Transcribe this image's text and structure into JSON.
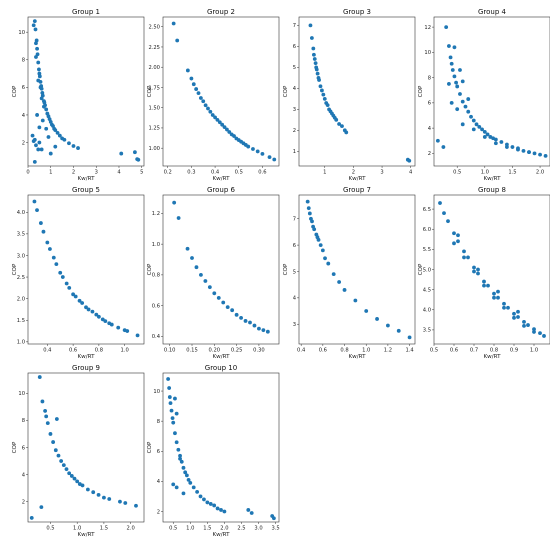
{
  "figure": {
    "xlabel": "Kw/RT",
    "ylabel": "COP",
    "marker_color": "#1f77b4"
  },
  "chart_data": [
    {
      "type": "scatter",
      "title": "Group 1",
      "xlabel": "Kw/RT",
      "ylabel": "COP",
      "xlim": [
        0,
        5.1
      ],
      "ylim": [
        0.3,
        11.1
      ],
      "xticks": [
        0,
        1,
        2,
        3,
        4,
        5
      ],
      "yticks": [
        2,
        4,
        6,
        8,
        10
      ],
      "x": [
        0.25,
        0.3,
        0.33,
        0.35,
        0.38,
        0.4,
        0.42,
        0.45,
        0.48,
        0.5,
        0.52,
        0.55,
        0.58,
        0.6,
        0.63,
        0.65,
        0.7,
        0.72,
        0.75,
        0.8,
        0.85,
        0.9,
        0.95,
        1.0,
        1.05,
        1.1,
        1.15,
        1.2,
        1.3,
        1.4,
        1.5,
        1.6,
        1.8,
        2.0,
        2.2,
        0.35,
        0.45,
        0.55,
        0.6,
        0.4,
        0.5,
        0.65,
        0.7,
        0.8,
        0.3,
        0.35,
        0.45,
        0.2,
        0.25,
        0.5,
        0.6,
        0.3,
        0.9,
        1.0,
        1.2,
        4.1,
        4.8,
        4.85,
        4.7
      ],
      "y": [
        10.5,
        10.8,
        10.2,
        9.2,
        9.4,
        8.8,
        8.4,
        7.8,
        7.3,
        7.0,
        6.8,
        6.4,
        6.1,
        5.9,
        5.6,
        5.4,
        5.0,
        4.9,
        4.7,
        4.4,
        4.1,
        3.9,
        3.7,
        3.5,
        3.3,
        3.2,
        3.0,
        2.9,
        2.7,
        2.5,
        2.3,
        2.2,
        1.95,
        1.75,
        1.6,
        8.2,
        6.5,
        6.0,
        5.2,
        4.0,
        3.1,
        3.6,
        4.6,
        3.0,
        2.2,
        1.8,
        1.5,
        2.5,
        2.1,
        2.0,
        1.5,
        0.6,
        2.4,
        1.2,
        1.7,
        1.2,
        0.8,
        0.75,
        1.3
      ]
    },
    {
      "type": "scatter",
      "title": "Group 2",
      "xlabel": "Kw/RT",
      "ylabel": "COP",
      "xlim": [
        0.18,
        0.67
      ],
      "ylim": [
        0.78,
        2.62
      ],
      "xticks": [
        0.2,
        0.3,
        0.4,
        0.5,
        0.6
      ],
      "yticks": [
        1.0,
        1.25,
        1.5,
        1.75,
        2.0,
        2.25,
        2.5
      ],
      "x": [
        0.225,
        0.24,
        0.285,
        0.3,
        0.31,
        0.32,
        0.33,
        0.34,
        0.35,
        0.36,
        0.37,
        0.38,
        0.39,
        0.4,
        0.41,
        0.42,
        0.43,
        0.44,
        0.45,
        0.46,
        0.47,
        0.48,
        0.49,
        0.5,
        0.51,
        0.52,
        0.53,
        0.54,
        0.56,
        0.58,
        0.6,
        0.63,
        0.65
      ],
      "y": [
        2.54,
        2.33,
        1.96,
        1.86,
        1.79,
        1.73,
        1.68,
        1.62,
        1.58,
        1.53,
        1.49,
        1.45,
        1.41,
        1.38,
        1.35,
        1.32,
        1.29,
        1.26,
        1.23,
        1.2,
        1.17,
        1.15,
        1.12,
        1.1,
        1.08,
        1.06,
        1.04,
        1.02,
        0.99,
        0.96,
        0.93,
        0.89,
        0.86
      ]
    },
    {
      "type": "scatter",
      "title": "Group 3",
      "xlabel": "Kw/RT",
      "ylabel": "COP",
      "xlim": [
        0.1,
        4.15
      ],
      "ylim": [
        0.3,
        7.4
      ],
      "xticks": [
        1,
        2,
        3,
        4
      ],
      "yticks": [
        1,
        2,
        3,
        4,
        5,
        6,
        7
      ],
      "x": [
        0.5,
        0.55,
        0.6,
        0.62,
        0.65,
        0.68,
        0.7,
        0.72,
        0.75,
        0.78,
        0.8,
        0.85,
        0.9,
        0.95,
        1.0,
        1.05,
        1.1,
        1.15,
        1.2,
        1.25,
        1.3,
        1.35,
        1.4,
        1.5,
        1.6,
        1.7,
        1.75,
        3.9,
        3.95
      ],
      "y": [
        7.0,
        6.4,
        5.9,
        5.6,
        5.4,
        5.2,
        5.0,
        4.9,
        4.7,
        4.5,
        4.4,
        4.1,
        3.9,
        3.7,
        3.5,
        3.3,
        3.2,
        3.0,
        2.9,
        2.8,
        2.7,
        2.6,
        2.5,
        2.3,
        2.2,
        2.0,
        1.9,
        0.6,
        0.55
      ]
    },
    {
      "type": "scatter",
      "title": "Group 4",
      "xlabel": "Kw/RT",
      "ylabel": "COP",
      "xlim": [
        0.08,
        2.18
      ],
      "ylim": [
        1.0,
        12.8
      ],
      "xticks": [
        0.5,
        1.0,
        1.5,
        2.0
      ],
      "yticks": [
        2,
        4,
        6,
        8,
        10,
        12
      ],
      "x": [
        0.3,
        0.35,
        0.38,
        0.4,
        0.42,
        0.45,
        0.48,
        0.5,
        0.55,
        0.6,
        0.65,
        0.7,
        0.75,
        0.8,
        0.85,
        0.9,
        0.95,
        1.0,
        1.05,
        1.1,
        1.15,
        1.2,
        1.3,
        1.4,
        1.5,
        1.6,
        1.7,
        1.8,
        1.9,
        2.0,
        2.1,
        0.45,
        0.55,
        0.6,
        0.7,
        0.35,
        0.4,
        0.5,
        0.6,
        0.8,
        1.0,
        1.2,
        1.4,
        1.6,
        1.8,
        0.15,
        0.25
      ],
      "y": [
        12.0,
        10.5,
        9.6,
        9.1,
        8.6,
        8.1,
        7.6,
        7.3,
        6.7,
        6.1,
        5.7,
        5.3,
        4.9,
        4.6,
        4.3,
        4.1,
        3.9,
        3.7,
        3.5,
        3.3,
        3.2,
        3.1,
        2.9,
        2.7,
        2.5,
        2.4,
        2.2,
        2.1,
        2.0,
        1.9,
        1.8,
        10.4,
        8.6,
        7.7,
        6.3,
        7.5,
        6.0,
        5.5,
        4.3,
        3.9,
        3.3,
        2.8,
        2.5,
        2.3,
        2.1,
        3.0,
        2.5
      ]
    },
    {
      "type": "scatter",
      "title": "Group 5",
      "xlabel": "Kw/RT",
      "ylabel": "COP",
      "xlim": [
        0.25,
        1.15
      ],
      "ylim": [
        0.95,
        4.4
      ],
      "xticks": [
        0.4,
        0.6,
        0.8,
        1.0
      ],
      "yticks": [
        1.0,
        1.5,
        2.0,
        2.5,
        3.0,
        3.5,
        4.0
      ],
      "x": [
        0.3,
        0.32,
        0.35,
        0.37,
        0.4,
        0.42,
        0.45,
        0.47,
        0.5,
        0.52,
        0.55,
        0.57,
        0.6,
        0.62,
        0.65,
        0.67,
        0.7,
        0.72,
        0.75,
        0.78,
        0.8,
        0.83,
        0.85,
        0.88,
        0.9,
        0.95,
        1.0,
        1.02,
        1.1
      ],
      "y": [
        4.25,
        4.05,
        3.75,
        3.55,
        3.3,
        3.15,
        2.95,
        2.8,
        2.6,
        2.5,
        2.35,
        2.25,
        2.1,
        2.05,
        1.95,
        1.9,
        1.8,
        1.75,
        1.7,
        1.63,
        1.58,
        1.52,
        1.48,
        1.43,
        1.4,
        1.33,
        1.27,
        1.25,
        1.15
      ]
    },
    {
      "type": "scatter",
      "title": "Group 6",
      "xlabel": "Kw/RT",
      "ylabel": "COP",
      "xlim": [
        0.085,
        0.345
      ],
      "ylim": [
        0.35,
        1.32
      ],
      "xticks": [
        0.1,
        0.15,
        0.2,
        0.25,
        0.3,
        0.35
      ],
      "yticks": [
        0.4,
        0.6,
        0.8,
        1.0,
        1.2
      ],
      "x": [
        0.11,
        0.12,
        0.14,
        0.15,
        0.16,
        0.17,
        0.18,
        0.19,
        0.2,
        0.21,
        0.22,
        0.23,
        0.24,
        0.25,
        0.26,
        0.27,
        0.28,
        0.29,
        0.3,
        0.31,
        0.32
      ],
      "y": [
        1.27,
        1.17,
        0.97,
        0.91,
        0.85,
        0.8,
        0.76,
        0.72,
        0.68,
        0.65,
        0.62,
        0.59,
        0.57,
        0.54,
        0.52,
        0.5,
        0.49,
        0.47,
        0.45,
        0.44,
        0.43
      ]
    },
    {
      "type": "scatter",
      "title": "Group 7",
      "xlabel": "Kw/RT",
      "ylabel": "COP",
      "xlim": [
        0.38,
        1.45
      ],
      "ylim": [
        2.25,
        7.9
      ],
      "xticks": [
        0.4,
        0.6,
        0.8,
        1.0,
        1.2,
        1.4
      ],
      "yticks": [
        3,
        4,
        5,
        6,
        7
      ],
      "x": [
        0.46,
        0.47,
        0.48,
        0.49,
        0.5,
        0.51,
        0.52,
        0.54,
        0.55,
        0.56,
        0.58,
        0.6,
        0.62,
        0.65,
        0.7,
        0.75,
        0.8,
        0.9,
        1.0,
        1.1,
        1.2,
        1.3,
        1.4
      ],
      "y": [
        7.65,
        7.4,
        7.2,
        7.0,
        6.9,
        6.7,
        6.6,
        6.4,
        6.3,
        6.2,
        6.0,
        5.8,
        5.5,
        5.3,
        4.9,
        4.6,
        4.3,
        3.9,
        3.5,
        3.2,
        2.95,
        2.75,
        2.5
      ]
    },
    {
      "type": "scatter",
      "title": "Group 8",
      "xlabel": "Kw/RT",
      "ylabel": "COP",
      "xlim": [
        0.5,
        1.08
      ],
      "ylim": [
        3.15,
        6.85
      ],
      "xticks": [
        0.5,
        0.6,
        0.7,
        0.8,
        0.9,
        1.0
      ],
      "yticks": [
        3.5,
        4.0,
        4.5,
        5.0,
        5.5,
        6.0,
        6.5
      ],
      "x": [
        0.53,
        0.55,
        0.57,
        0.6,
        0.62,
        0.65,
        0.67,
        0.7,
        0.72,
        0.75,
        0.77,
        0.8,
        0.82,
        0.85,
        0.87,
        0.9,
        0.92,
        0.95,
        0.97,
        1.0,
        1.03,
        1.05,
        0.6,
        0.65,
        0.7,
        0.75,
        0.8,
        0.85,
        0.9,
        0.95,
        1.0,
        0.62,
        0.72,
        0.82,
        0.92
      ],
      "y": [
        6.65,
        6.4,
        6.2,
        5.9,
        5.7,
        5.45,
        5.3,
        5.05,
        4.9,
        4.7,
        4.6,
        4.4,
        4.3,
        4.15,
        4.05,
        3.9,
        3.82,
        3.7,
        3.62,
        3.52,
        3.42,
        3.35,
        5.65,
        5.3,
        4.95,
        4.6,
        4.3,
        4.05,
        3.8,
        3.6,
        3.45,
        5.85,
        5.0,
        4.45,
        3.95
      ]
    },
    {
      "type": "scatter",
      "title": "Group 9",
      "xlabel": "Kw/RT",
      "ylabel": "COP",
      "xlim": [
        0.08,
        2.25
      ],
      "ylim": [
        0.5,
        11.5
      ],
      "xticks": [
        0.5,
        1.0,
        1.5,
        2.0
      ],
      "yticks": [
        2,
        4,
        6,
        8,
        10
      ],
      "x": [
        0.3,
        0.35,
        0.4,
        0.42,
        0.45,
        0.5,
        0.55,
        0.6,
        0.65,
        0.7,
        0.75,
        0.8,
        0.85,
        0.9,
        0.95,
        1.0,
        1.05,
        1.1,
        1.2,
        1.3,
        1.4,
        1.5,
        1.6,
        1.8,
        1.9,
        2.1,
        0.62,
        0.15,
        0.33
      ],
      "y": [
        11.2,
        9.4,
        8.7,
        8.3,
        7.8,
        7.0,
        6.4,
        5.8,
        5.4,
        5.0,
        4.7,
        4.4,
        4.1,
        3.9,
        3.7,
        3.5,
        3.3,
        3.2,
        2.9,
        2.7,
        2.5,
        2.3,
        2.2,
        2.0,
        1.9,
        1.7,
        8.1,
        0.8,
        1.6
      ]
    },
    {
      "type": "scatter",
      "title": "Group 10",
      "xlabel": "Kw/RT",
      "ylabel": "COP",
      "xlim": [
        0.2,
        3.6
      ],
      "ylim": [
        1.3,
        11.2
      ],
      "xticks": [
        0.5,
        1.0,
        1.5,
        2.0,
        2.5,
        3.0,
        3.5
      ],
      "yticks": [
        2,
        4,
        6,
        8,
        10
      ],
      "x": [
        0.35,
        0.38,
        0.4,
        0.42,
        0.45,
        0.48,
        0.5,
        0.55,
        0.6,
        0.65,
        0.7,
        0.75,
        0.8,
        0.85,
        0.9,
        0.95,
        1.0,
        1.1,
        1.2,
        1.3,
        1.4,
        1.5,
        1.6,
        1.7,
        1.8,
        1.9,
        2.0,
        0.55,
        0.6,
        0.7,
        0.8,
        0.5,
        0.6,
        2.7,
        2.8,
        3.4,
        3.45
      ],
      "y": [
        10.8,
        10.2,
        9.6,
        9.2,
        8.7,
        8.2,
        7.9,
        7.2,
        6.6,
        6.1,
        5.7,
        5.3,
        4.9,
        4.6,
        4.4,
        4.1,
        3.9,
        3.6,
        3.3,
        3.0,
        2.8,
        2.6,
        2.5,
        2.4,
        2.2,
        2.1,
        2.0,
        9.5,
        8.5,
        5.5,
        3.2,
        3.8,
        3.6,
        2.1,
        1.9,
        1.7,
        1.55
      ]
    }
  ]
}
